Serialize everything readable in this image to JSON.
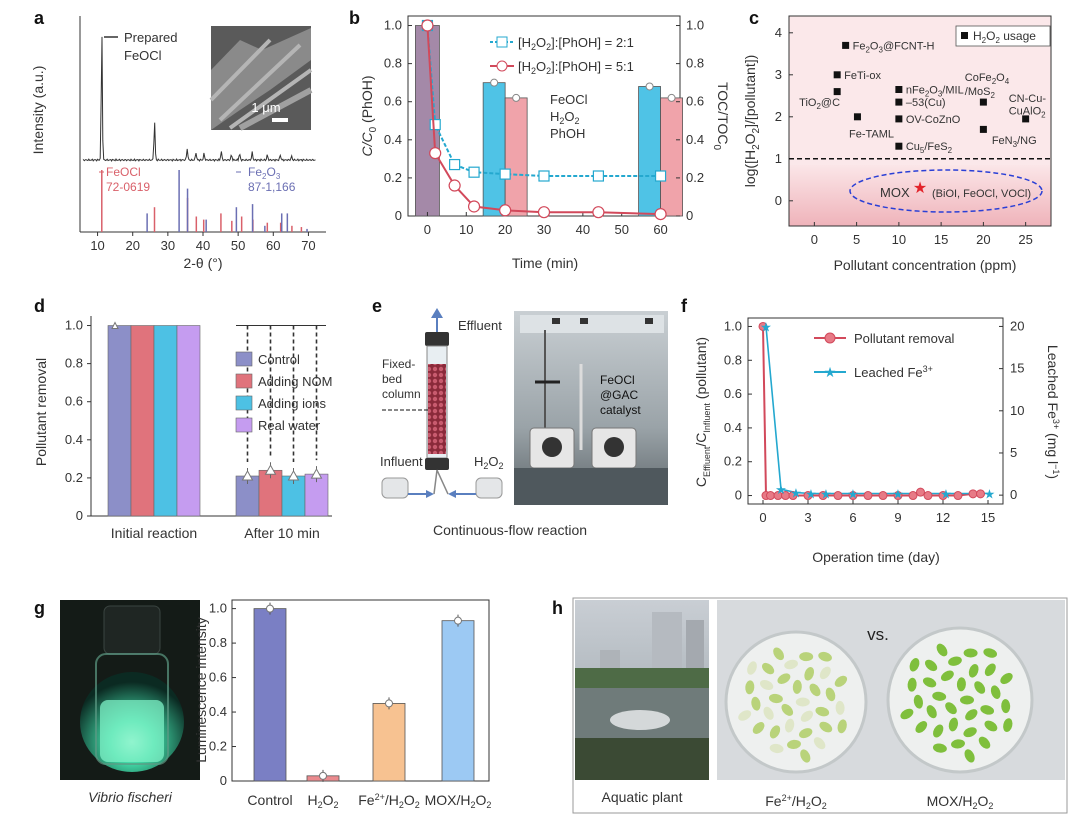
{
  "colors": {
    "prepared_line": "#333333",
    "feocl_ref": "#d9606a",
    "fe2o3_ref": "#6b6fb3",
    "cyan": "#24a8cf",
    "red": "#d2495b",
    "cyan_bar": "#4fc3e6",
    "pink_bar": "#f0a3aa",
    "control": "#8c8fc8",
    "nom": "#e0737c",
    "ions": "#4dc1e4",
    "real_water": "#c59cf0",
    "g_control": "#7a7fc4",
    "g_h2o2": "#ea8a8e",
    "g_fe": "#f7c291",
    "g_mox": "#9cc9f3",
    "bg_pink": "#f3c3c8"
  },
  "panels": {
    "a": "a",
    "b": "b",
    "c": "c",
    "d": "d",
    "e": "e",
    "f": "f",
    "g": "g",
    "h": "h"
  },
  "chart_data": [
    {
      "id": "a",
      "type": "line",
      "title": "",
      "xlabel": "2-θ (°)",
      "ylabel": "Intensity (a.u.)",
      "xlim": [
        5,
        75
      ],
      "xticks": [
        10,
        20,
        30,
        40,
        50,
        60,
        70
      ],
      "legend": "Prepared FeOCl",
      "legend_line1": "Prepared",
      "legend_line2": "FeOCl",
      "inset_scale": "1 μm",
      "peaks": [
        {
          "x": 11.2,
          "h": 1.0
        },
        {
          "x": 26.2,
          "h": 0.3
        },
        {
          "x": 35.5,
          "h": 0.09
        },
        {
          "x": 38.0,
          "h": 0.06
        },
        {
          "x": 40.3,
          "h": 0.05
        },
        {
          "x": 45.2,
          "h": 0.07
        },
        {
          "x": 48.1,
          "h": 0.04
        },
        {
          "x": 50.4,
          "h": 0.05
        },
        {
          "x": 54.0,
          "h": 0.06
        },
        {
          "x": 58.3,
          "h": 0.04
        },
        {
          "x": 62.0,
          "h": 0.04
        },
        {
          "x": 65.2,
          "h": 0.03
        }
      ],
      "references": [
        {
          "name": "FeOCl",
          "pdf": "72-0619",
          "lines": [
            {
              "x": 11.2,
              "h": 1.0
            },
            {
              "x": 26.2,
              "h": 0.4
            },
            {
              "x": 35.6,
              "h": 0.55
            },
            {
              "x": 38.1,
              "h": 0.25
            },
            {
              "x": 40.2,
              "h": 0.2
            },
            {
              "x": 45.1,
              "h": 0.3
            },
            {
              "x": 48.2,
              "h": 0.18
            },
            {
              "x": 51.0,
              "h": 0.25
            },
            {
              "x": 54.2,
              "h": 0.2
            },
            {
              "x": 58.3,
              "h": 0.15
            },
            {
              "x": 62.1,
              "h": 0.15
            },
            {
              "x": 65.3,
              "h": 0.1
            },
            {
              "x": 68.0,
              "h": 0.08
            }
          ]
        },
        {
          "name": "Fe2O3",
          "name_main": "Fe",
          "name_sub1": "2",
          "name_o": "O",
          "name_sub2": "3",
          "pdf": "87-1,166",
          "lines": [
            {
              "x": 24.1,
              "h": 0.3
            },
            {
              "x": 33.2,
              "h": 1.0
            },
            {
              "x": 35.6,
              "h": 0.7
            },
            {
              "x": 40.9,
              "h": 0.2
            },
            {
              "x": 49.5,
              "h": 0.4
            },
            {
              "x": 54.1,
              "h": 0.45
            },
            {
              "x": 57.6,
              "h": 0.1
            },
            {
              "x": 62.4,
              "h": 0.3
            },
            {
              "x": 64.0,
              "h": 0.3
            },
            {
              "x": 69.6,
              "h": 0.05
            }
          ]
        }
      ]
    },
    {
      "id": "b",
      "type": "line",
      "xlabel": "Time (min)",
      "ylabel": "C/C0 (PhOH)",
      "ylabel_main": "C/C",
      "ylabel_sub": "0",
      "ylabel_tail": " (PhOH)",
      "y2label": "TOC/TOC0",
      "y2label_main": "TOC/TOC",
      "y2label_sub": "0",
      "xlim": [
        -5,
        65
      ],
      "ylim": [
        0,
        1.05
      ],
      "xticks": [
        0,
        10,
        20,
        30,
        40,
        50,
        60
      ],
      "yticks": [
        0,
        0.2,
        0.4,
        0.6,
        0.8,
        1.0
      ],
      "ytick_labels": [
        "0",
        "0.2",
        "0.4",
        "0.6",
        "0.8",
        "1.0"
      ],
      "annotation": [
        "FeOCl",
        "H2O2",
        "PhOH"
      ],
      "series": [
        {
          "name": "[H2O2]:[PhOH] = 2:1",
          "x": [
            0,
            2,
            7,
            12,
            20,
            30,
            44,
            60
          ],
          "values": [
            1.0,
            0.48,
            0.27,
            0.23,
            0.22,
            0.21,
            0.21,
            0.21
          ]
        },
        {
          "name": "[H2O2]:[PhOH] = 5:1",
          "x": [
            0,
            2,
            7,
            12,
            20,
            30,
            44,
            60
          ],
          "values": [
            1.0,
            0.33,
            0.16,
            0.05,
            0.03,
            0.02,
            0.02,
            0.01
          ]
        }
      ],
      "legend_prefix": "[H",
      "legend_mid": "O",
      "legend_suffix_a": "]:[PhOH] = 2:1",
      "legend_suffix_b": "]:[PhOH] = 5:1",
      "toc_bars": [
        {
          "x": 0,
          "values": [
            1.0
          ]
        },
        {
          "x": 20,
          "values": [
            0.7,
            0.62
          ]
        },
        {
          "x": 60,
          "values": [
            0.68,
            0.62
          ]
        }
      ]
    },
    {
      "id": "c",
      "type": "scatter",
      "xlabel": "Pollutant concentration (ppm)",
      "ylabel": "log([H2O2]/[pollutant])",
      "ylabel_a": "log([H",
      "ylabel_b": "O",
      "ylabel_c": "]/[pollutant])",
      "xlim": [
        -3,
        28
      ],
      "ylim": [
        -0.6,
        4.4
      ],
      "xticks": [
        0,
        5,
        10,
        15,
        20,
        25
      ],
      "yticks": [
        0,
        1,
        2,
        3,
        4
      ],
      "threshold": 1,
      "legend": "H2O2 usage",
      "legend_a": "H",
      "legend_b": "O",
      "legend_c": " usage",
      "points": [
        {
          "label": "Fe2O3@FCNT-H",
          "x": 3.7,
          "y": 3.7
        },
        {
          "label": "FeTi-ox",
          "x": 2.7,
          "y": 3.0
        },
        {
          "label": "TiO2@C",
          "x": 2.7,
          "y": 2.6
        },
        {
          "label": "Fe-TAML",
          "x": 5.1,
          "y": 2.0
        },
        {
          "label": "nFe2O3/MIL",
          "x": 10.0,
          "y": 2.65
        },
        {
          "label": "-53(Cu)",
          "x": 10.0,
          "y": 2.35
        },
        {
          "label": "OV-CoZnO",
          "x": 10.0,
          "y": 1.95
        },
        {
          "label": "Cu5/FeS2",
          "x": 10.0,
          "y": 1.3
        },
        {
          "label": "CoFe2O4/MoS2",
          "x": 20.0,
          "y": 2.35
        },
        {
          "label": "FeN3/NG",
          "x": 20.0,
          "y": 1.7
        },
        {
          "label": "CN-Cu-CuAlO2",
          "x": 25.0,
          "y": 1.95
        }
      ],
      "point_labels": {
        "p1": "Fe",
        "p1b": "O",
        "p1c": "@FCNT-H",
        "p2": "FeTi-ox",
        "p3": "TiO",
        "p3b": "@C",
        "p4": "Fe-TAML",
        "p5": "nFe",
        "p5b": "O",
        "p5c": "/MIL",
        "p6": "–53(Cu)",
        "p7": "OV-CoZnO",
        "p8": "Cu",
        "p8b": "/FeS",
        "p9": "CoFe",
        "p9b": "O",
        "p9c": "/MoS",
        "p10": "FeN",
        "p10b": "/NG",
        "p11": "CN-Cu-",
        "p11b": "CuAlO"
      },
      "mox": {
        "label": "MOX",
        "detail": "(BiOI, FeOCl, VOCl)",
        "x": 12.5,
        "y": 0.3
      }
    },
    {
      "id": "d",
      "type": "bar",
      "ylabel": "Pollutant removal",
      "categories": [
        "Initial reaction",
        "After 10 min"
      ],
      "yticks": [
        0,
        0.2,
        0.4,
        0.6,
        0.8,
        1.0
      ],
      "ytick_labels": [
        "0",
        "0.2",
        "0.4",
        "0.6",
        "0.8",
        "1.0"
      ],
      "ylim": [
        0,
        1.05
      ],
      "series": [
        {
          "name": "Control",
          "values": [
            1.0,
            0.21
          ]
        },
        {
          "name": "Adding NOM",
          "values": [
            1.0,
            0.24
          ]
        },
        {
          "name": "Adding ions",
          "values": [
            1.0,
            0.21
          ]
        },
        {
          "name": "Real water",
          "values": [
            1.0,
            0.22
          ]
        }
      ]
    },
    {
      "id": "f",
      "type": "line",
      "xlabel": "Operation time (day)",
      "ylabel": "CEffluent/CInfluent (pollutant)",
      "ylabel_a": "C",
      "ylabel_sub1": "Effluent",
      "ylabel_b": "/C",
      "ylabel_sub2": "Influent",
      "ylabel_c": " (pollutant)",
      "y2label": "Leached Fe3+ (mg l-1)",
      "y2label_a": "Leached Fe",
      "y2label_sup": "3+",
      "y2label_b": " (mg l",
      "y2label_sup2": "−1",
      "y2label_c": ")",
      "xlim": [
        -1,
        16
      ],
      "ylim": [
        -0.05,
        1.05
      ],
      "y2lim": [
        -1.05,
        21
      ],
      "xticks": [
        0,
        3,
        6,
        9,
        12,
        15
      ],
      "yticks": [
        0,
        0.2,
        0.4,
        0.6,
        0.8,
        1.0
      ],
      "ytick_labels": [
        "0",
        "0.2",
        "0.4",
        "0.6",
        "0.8",
        "1.0"
      ],
      "y2ticks": [
        0,
        5,
        10,
        15,
        20
      ],
      "series": [
        {
          "name": "Pollutant removal",
          "x": [
            0,
            0.2,
            0.5,
            1,
            1.5,
            2,
            3,
            4,
            5,
            6,
            7,
            8,
            9,
            10,
            10.5,
            11,
            12,
            13,
            14,
            14.5
          ],
          "values": [
            1.0,
            0.0,
            0.0,
            0.0,
            0.0,
            0.0,
            0.0,
            0.0,
            0.0,
            0.0,
            0.0,
            0.0,
            0.0,
            0.0,
            0.02,
            0.0,
            0.0,
            0.0,
            0.01,
            0.01
          ]
        },
        {
          "name": "Leached Fe3+",
          "legend_a": "Leached Fe",
          "legend_sup": "3+",
          "axis": "right",
          "x": [
            0.2,
            1.2,
            2.2,
            3.2,
            4.2,
            6.0,
            9.0,
            12.2,
            15.1
          ],
          "values": [
            20.0,
            0.7,
            0.3,
            0.2,
            0.2,
            0.2,
            0.2,
            0.2,
            0.2
          ]
        }
      ]
    },
    {
      "id": "g",
      "type": "bar",
      "ylabel": "Luminescence intensity",
      "categories": [
        "Control",
        "H2O2",
        "Fe2+/H2O2",
        "MOX/H2O2"
      ],
      "yticks": [
        0,
        0.2,
        0.4,
        0.6,
        0.8,
        1.0
      ],
      "ytick_labels": [
        "0",
        "0.2",
        "0.4",
        "0.6",
        "0.8",
        "1.0"
      ],
      "ylim": [
        0,
        1.05
      ],
      "values": [
        1.0,
        0.03,
        0.45,
        0.93
      ],
      "tick_parts": {
        "c1": "Control",
        "c2a": "H",
        "c2b": "O",
        "c3a": "Fe",
        "c3sup": "2+",
        "c3b": "/H",
        "c3c": "O",
        "c4a": "MOX/H",
        "c4b": "O"
      }
    }
  ],
  "panel_e": {
    "effluent": "Effluent",
    "fixed_bed": [
      "Fixed-",
      "bed",
      "column"
    ],
    "influent": "Influent",
    "h2o2_a": "H",
    "h2o2_b": "O",
    "catalyst": [
      "FeOCl",
      "@GAC",
      "catalyst"
    ],
    "caption": "Continuous-flow reaction"
  },
  "panel_g_photo": {
    "caption": "Vibrio fischeri"
  },
  "panel_h": {
    "left_caption": "Aquatic plant",
    "vs": "vs.",
    "mid_a": "Fe",
    "mid_sup": "2+",
    "mid_b": "/H",
    "mid_c": "O",
    "right_a": "MOX/H",
    "right_b": "O"
  },
  "subscripts": {
    "two": "2",
    "three": "3",
    "four": "4",
    "five": "5"
  }
}
